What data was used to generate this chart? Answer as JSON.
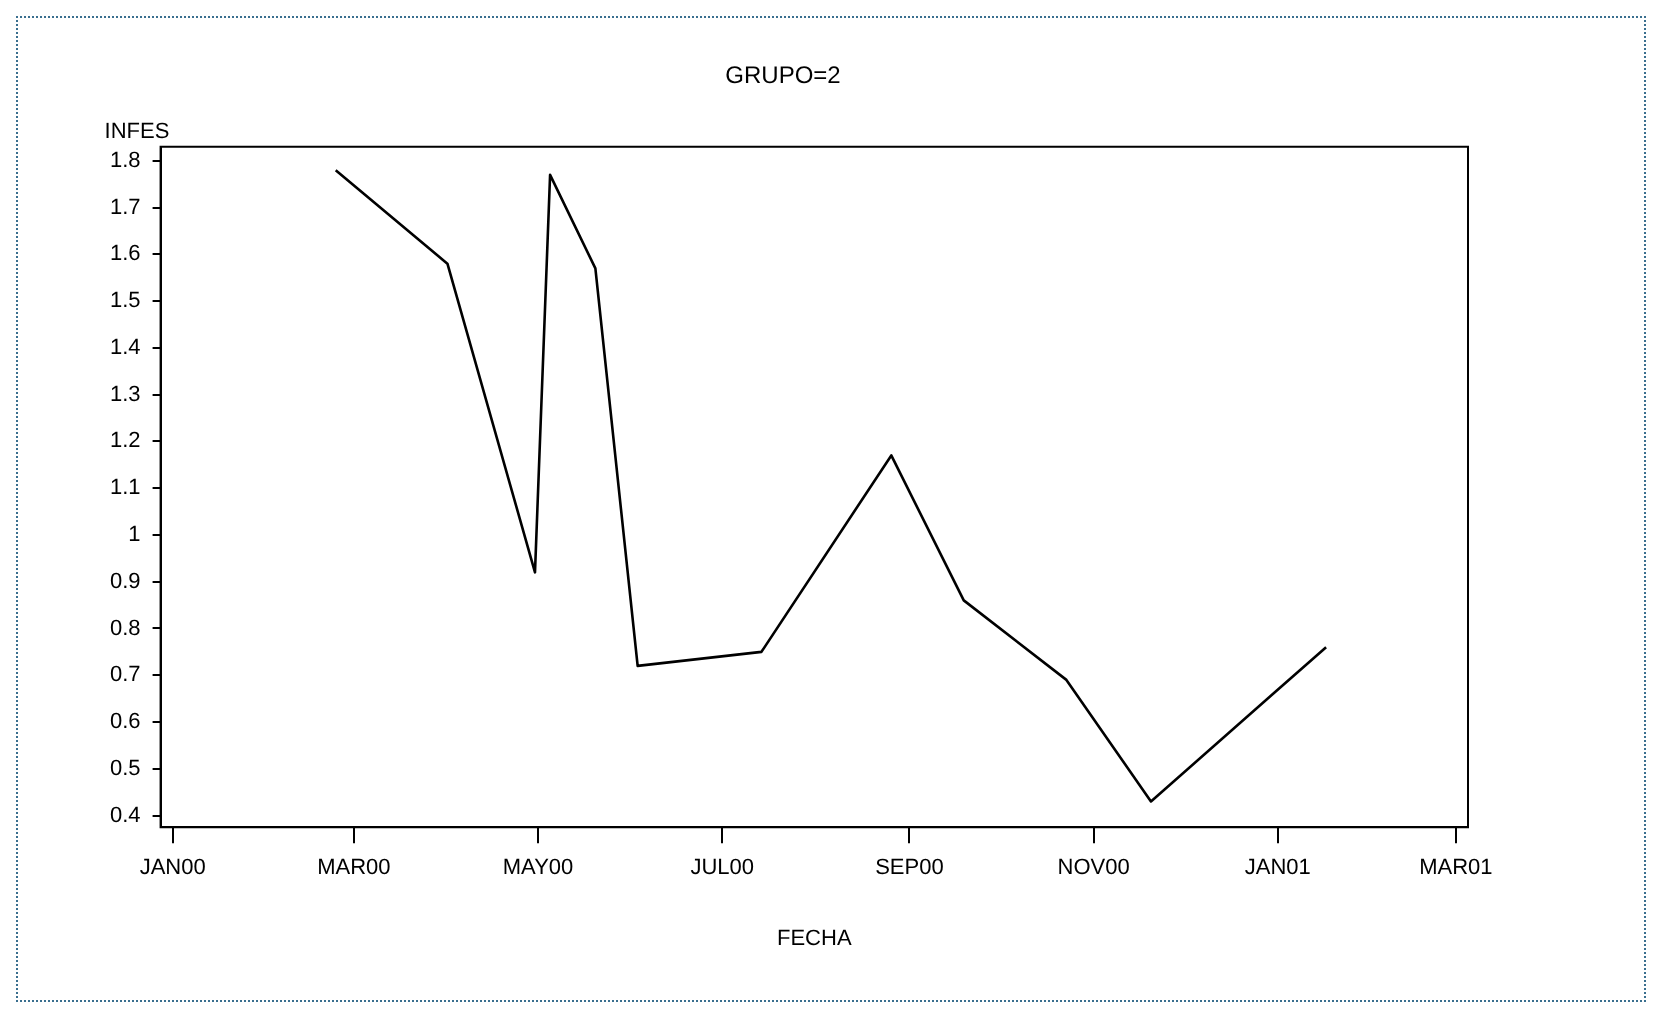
{
  "chart_data": {
    "type": "line",
    "title": "GRUPO=2",
    "xlabel": "FECHA",
    "ylabel": "INFES",
    "x": [
      "2000-02-24",
      "2000-04-01",
      "2000-04-30",
      "2000-05-05",
      "2000-05-20",
      "2000-06-03",
      "2000-07-14",
      "2000-08-26",
      "2000-09-19",
      "2000-10-23",
      "2000-11-20",
      "2001-01-17"
    ],
    "series": [
      {
        "color": "#000000",
        "values": [
          1.78,
          1.58,
          0.92,
          1.77,
          1.57,
          0.72,
          0.75,
          1.17,
          0.86,
          0.69,
          0.43,
          0.76
        ]
      }
    ],
    "xlim": [
      "1999-12-28",
      "2001-03-05"
    ],
    "xticks": [
      {
        "value": "2000-01-01",
        "label": "JAN00"
      },
      {
        "value": "2000-03-01",
        "label": "MAR00"
      },
      {
        "value": "2000-05-01",
        "label": "MAY00"
      },
      {
        "value": "2000-07-01",
        "label": "JUL00"
      },
      {
        "value": "2000-09-01",
        "label": "SEP00"
      },
      {
        "value": "2000-11-01",
        "label": "NOV00"
      },
      {
        "value": "2001-01-01",
        "label": "JAN01"
      },
      {
        "value": "2001-03-01",
        "label": "MAR01"
      }
    ],
    "ylim": [
      0.375,
      1.83
    ],
    "yticks": [
      0.4,
      0.5,
      0.6,
      0.7,
      0.8,
      0.9,
      1,
      1.1,
      1.2,
      1.3,
      1.4,
      1.5,
      1.6,
      1.7,
      1.8
    ],
    "grid": false,
    "legend": false,
    "marker": "none",
    "line_style": "solid"
  }
}
